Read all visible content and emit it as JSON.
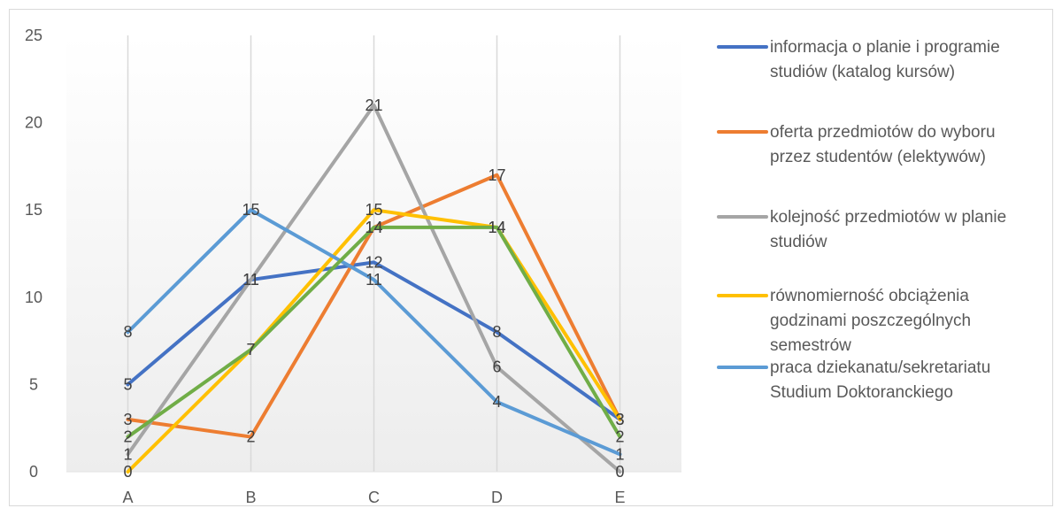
{
  "chart_data": {
    "type": "line",
    "categories": [
      "A",
      "B",
      "C",
      "D",
      "E"
    ],
    "ylim": [
      0,
      25
    ],
    "yticks": [
      0,
      5,
      10,
      15,
      20,
      25
    ],
    "grid": "vertical",
    "legend_position": "right",
    "data_labels": true,
    "series": [
      {
        "name": "informacja o planie i programie studiów (katalog kursów)",
        "color": "#4472C4",
        "values": [
          5,
          11,
          12,
          8,
          3
        ]
      },
      {
        "name": "oferta przedmiotów do wyboru przez studentów (elektywów)",
        "color": "#ED7D31",
        "values": [
          3,
          2,
          14,
          17,
          3
        ]
      },
      {
        "name": "kolejność przedmiotów w planie studiów",
        "color": "#A5A5A5",
        "values": [
          1,
          11,
          21,
          6,
          0
        ]
      },
      {
        "name": "równomierność obciążenia godzinami poszczególnych semestrów",
        "color": "#FFC000",
        "values": [
          0,
          7,
          15,
          14,
          3
        ]
      },
      {
        "name": "praca dziekanatu/sekretariatu Studium Doktoranckiego",
        "color": "#5B9BD5",
        "values": [
          8,
          15,
          11,
          4,
          1
        ]
      },
      {
        "name": "",
        "color": "#70AD47",
        "values": [
          2,
          7,
          14,
          14,
          2
        ]
      }
    ]
  }
}
